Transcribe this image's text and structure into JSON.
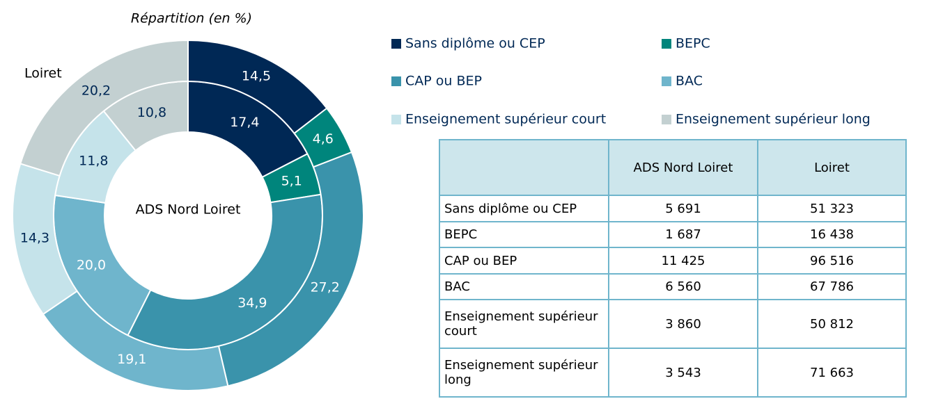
{
  "chart_data": {
    "type": "donut",
    "title": "Répartition (en %)",
    "categories": [
      "Sans diplôme ou CEP",
      "BEPC",
      "CAP ou BEP",
      "BAC",
      "Enseignement supérieur court",
      "Enseignement supérieur long"
    ],
    "colors": [
      "#002855",
      "#00857c",
      "#3a93ab",
      "#6fb5cc",
      "#c5e3ea",
      "#c3d0d1"
    ],
    "series": [
      {
        "name": "ADS Nord Loiret",
        "values": [
          17.4,
          5.1,
          34.9,
          20.0,
          11.8,
          10.8
        ],
        "value_labels": [
          "17,4",
          "5,1",
          "34,9",
          "20,0",
          "11,8",
          "10,8"
        ]
      },
      {
        "name": "Loiret",
        "values": [
          14.5,
          4.6,
          27.2,
          19.1,
          14.3,
          20.2
        ],
        "value_labels": [
          "14,5",
          "4,6",
          "27,2",
          "19,1",
          "14,3",
          "20,2"
        ]
      }
    ]
  },
  "table": {
    "columns": [
      "ADS Nord Loiret",
      "Loiret"
    ],
    "rows": [
      [
        "Sans diplôme ou CEP",
        "5 691",
        "51 323"
      ],
      [
        "BEPC",
        "1 687",
        "16 438"
      ],
      [
        "CAP ou BEP",
        "11 425",
        "96 516"
      ],
      [
        "BAC",
        "6 560",
        "67 786"
      ],
      [
        "Enseignement supérieur court",
        "3 860",
        "50 812"
      ],
      [
        "Enseignement supérieur long",
        "3 543",
        "71 663"
      ]
    ]
  }
}
